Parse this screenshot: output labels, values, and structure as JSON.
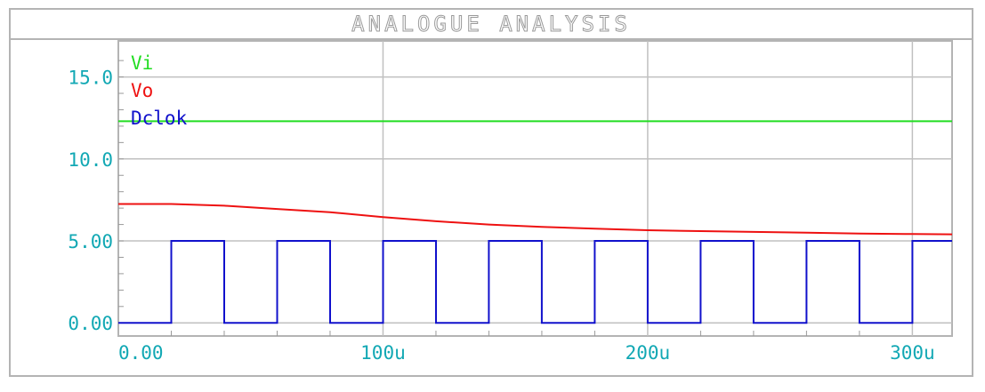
{
  "window": {
    "title": "ANALOGUE ANALYSIS"
  },
  "chart_data": {
    "type": "line",
    "title": "ANALOGUE ANALYSIS",
    "xlabel": "",
    "ylabel": "",
    "xlim": [
      0,
      315
    ],
    "ylim": [
      -0.8,
      17.2
    ],
    "grid": true,
    "legend_placement": "top-left",
    "x_ticks": [
      {
        "value": 0,
        "label": "0.00"
      },
      {
        "value": 100,
        "label": "100u"
      },
      {
        "value": 200,
        "label": "200u"
      },
      {
        "value": 300,
        "label": "300u"
      }
    ],
    "y_ticks": [
      {
        "value": 0,
        "label": "0.00"
      },
      {
        "value": 5,
        "label": "5.00"
      },
      {
        "value": 10,
        "label": "10.0"
      },
      {
        "value": 15,
        "label": "15.0"
      }
    ],
    "series": [
      {
        "name": "Vi",
        "color": "#22dd22",
        "x": [
          0,
          315
        ],
        "y": [
          12.3,
          12.3
        ]
      },
      {
        "name": "Vo",
        "color": "#ee1111",
        "x": [
          0,
          20,
          40,
          60,
          80,
          100,
          120,
          140,
          160,
          180,
          200,
          220,
          240,
          260,
          280,
          300,
          315
        ],
        "y": [
          7.25,
          7.25,
          7.15,
          6.95,
          6.75,
          6.45,
          6.2,
          6.0,
          5.85,
          5.75,
          5.65,
          5.6,
          5.55,
          5.5,
          5.45,
          5.42,
          5.4
        ]
      },
      {
        "name": "Dclok",
        "color": "#1111cc",
        "x": [
          0,
          20,
          20,
          40,
          40,
          60,
          60,
          80,
          80,
          100,
          100,
          120,
          120,
          140,
          140,
          160,
          160,
          180,
          180,
          200,
          200,
          220,
          220,
          240,
          240,
          260,
          260,
          280,
          280,
          300,
          300,
          315
        ],
        "y": [
          0,
          0,
          5,
          5,
          0,
          0,
          5,
          5,
          0,
          0,
          5,
          5,
          0,
          0,
          5,
          5,
          0,
          0,
          5,
          5,
          0,
          0,
          5,
          5,
          0,
          0,
          5,
          5,
          0,
          0,
          5,
          5
        ]
      }
    ]
  }
}
